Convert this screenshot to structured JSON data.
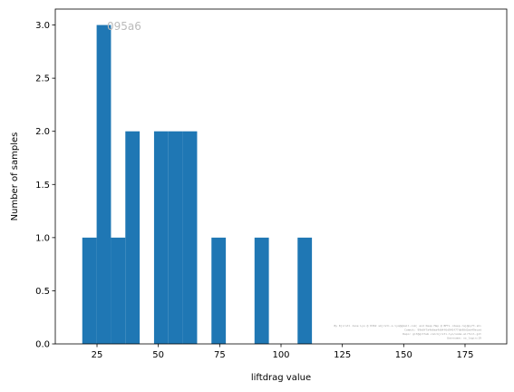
{
  "chart_data": {
    "type": "bar",
    "xlabel": "liftdrag value",
    "ylabel": "Number of samples",
    "xlim": [
      8,
      192
    ],
    "ylim": [
      0,
      3.15
    ],
    "xticks": [
      25,
      50,
      75,
      100,
      125,
      150,
      175
    ],
    "yticks": [
      0.0,
      0.5,
      1.0,
      1.5,
      2.0,
      2.5,
      3.0
    ],
    "xtick_labels": [
      "25",
      "50",
      "75",
      "100",
      "125",
      "150",
      "175"
    ],
    "ytick_labels": [
      "0.0",
      "0.5",
      "1.0",
      "1.5",
      "2.0",
      "2.5",
      "3.0"
    ],
    "bin_width": 5.85,
    "bins": [
      {
        "left": 19.0,
        "count": 1
      },
      {
        "left": 24.85,
        "count": 3
      },
      {
        "left": 30.7,
        "count": 1
      },
      {
        "left": 36.55,
        "count": 2
      },
      {
        "left": 48.25,
        "count": 2
      },
      {
        "left": 54.1,
        "count": 2
      },
      {
        "left": 59.95,
        "count": 2
      },
      {
        "left": 71.65,
        "count": 1
      },
      {
        "left": 89.2,
        "count": 1
      },
      {
        "left": 106.75,
        "count": 1
      }
    ],
    "bar_color": "#1f77b4",
    "grid": false,
    "watermark": "095a6",
    "footnote_lines": [
      "By Kjirsti Jane Lyo @ 0362 skjrsti.a.lyo@gmail.com; and Deep Map @ BFTL <deep.raj@pyft.sh>",
      "Commit: 99e0f7a4e6ea4d64f6d9f0f77db90d2ad49ecad",
      "Repo: git@github.com:kjrsti-lyo/some-airfoil.git",
      "Username: ns_login:19"
    ]
  }
}
